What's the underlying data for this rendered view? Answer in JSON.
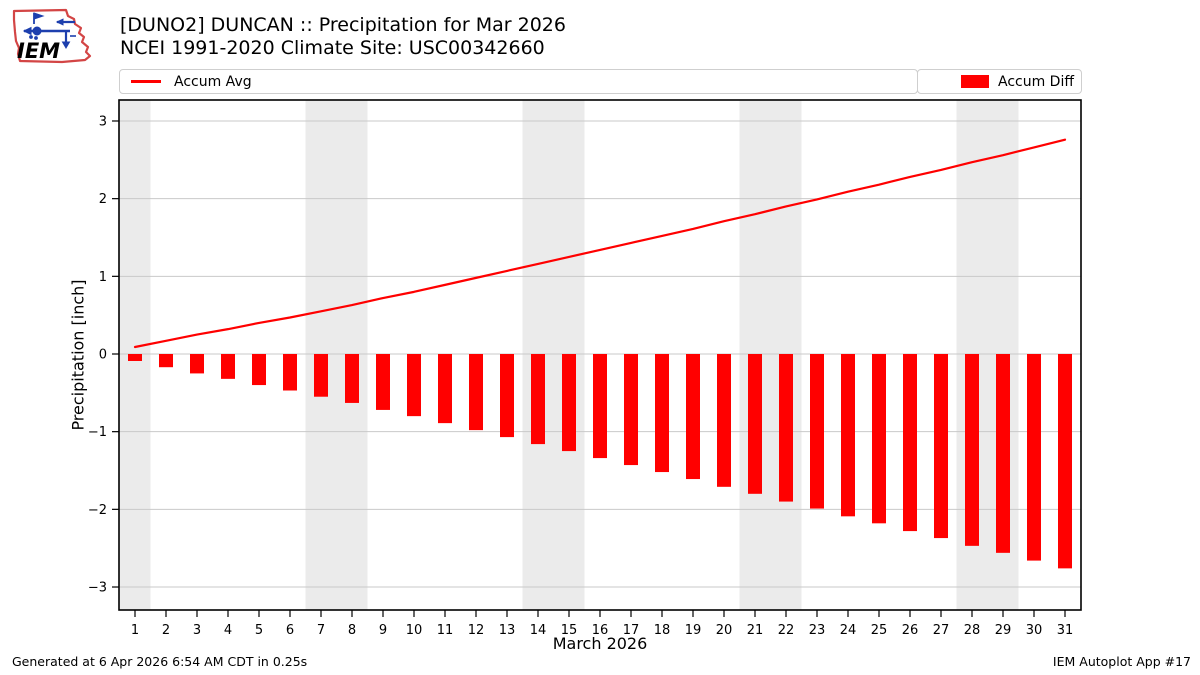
{
  "header": {
    "title_line1": "[DUNO2] DUNCAN :: Precipitation for Mar 2026",
    "title_line2": "NCEI 1991-2020 Climate Site: USC00342660",
    "logo_text": "IEM"
  },
  "legend": {
    "items": [
      {
        "label": "Accum Avg",
        "swatch": "line",
        "color": "#ff0000"
      },
      {
        "label": "Accum Diff",
        "swatch": "bar",
        "color": "#ff0000"
      }
    ]
  },
  "footer": {
    "left": "Generated at 6 Apr 2026 6:54 AM CDT in 0.25s",
    "right": "IEM Autoplot App #17"
  },
  "chart_data": {
    "type": "line",
    "title": "[DUNO2] DUNCAN :: Precipitation for Mar 2026",
    "subtitle": "NCEI 1991-2020 Climate Site: USC00342660",
    "xlabel": "March 2026",
    "ylabel": "Precipitation [inch]",
    "x": [
      1,
      2,
      3,
      4,
      5,
      6,
      7,
      8,
      9,
      10,
      11,
      12,
      13,
      14,
      15,
      16,
      17,
      18,
      19,
      20,
      21,
      22,
      23,
      24,
      25,
      26,
      27,
      28,
      29,
      30,
      31
    ],
    "x_tick_labels": [
      "1",
      "2",
      "3",
      "4",
      "5",
      "6",
      "7",
      "8",
      "9",
      "10",
      "11",
      "12",
      "13",
      "14",
      "15",
      "16",
      "17",
      "18",
      "19",
      "20",
      "21",
      "22",
      "23",
      "24",
      "25",
      "26",
      "27",
      "28",
      "29",
      "30",
      "31"
    ],
    "y_ticks": [
      3,
      2,
      1,
      0,
      -1,
      -2,
      -3
    ],
    "ylim": [
      -3.3,
      3.3
    ],
    "grid": true,
    "legend_position": "top",
    "weekend_shaded_days": [
      1,
      7,
      8,
      14,
      15,
      21,
      22,
      28,
      29
    ],
    "series": [
      {
        "name": "Accum Avg",
        "type": "line",
        "color": "#ff0000",
        "values": [
          0.09,
          0.17,
          0.25,
          0.32,
          0.4,
          0.47,
          0.55,
          0.63,
          0.72,
          0.8,
          0.89,
          0.98,
          1.07,
          1.16,
          1.25,
          1.34,
          1.43,
          1.52,
          1.61,
          1.71,
          1.8,
          1.9,
          1.99,
          2.09,
          2.18,
          2.28,
          2.37,
          2.47,
          2.56,
          2.66,
          2.76
        ]
      },
      {
        "name": "Accum Diff",
        "type": "bar",
        "color": "#ff0000",
        "values": [
          -0.09,
          -0.17,
          -0.25,
          -0.32,
          -0.4,
          -0.47,
          -0.55,
          -0.63,
          -0.72,
          -0.8,
          -0.89,
          -0.98,
          -1.07,
          -1.16,
          -1.25,
          -1.34,
          -1.43,
          -1.52,
          -1.61,
          -1.71,
          -1.8,
          -1.9,
          -1.99,
          -2.09,
          -2.18,
          -2.28,
          -2.37,
          -2.47,
          -2.56,
          -2.66,
          -2.76
        ]
      }
    ],
    "colors": {
      "accent": "#ff0000",
      "weekend_band": "#ebebeb",
      "gridline": "#c9c9c9",
      "frame": "#000000"
    }
  }
}
